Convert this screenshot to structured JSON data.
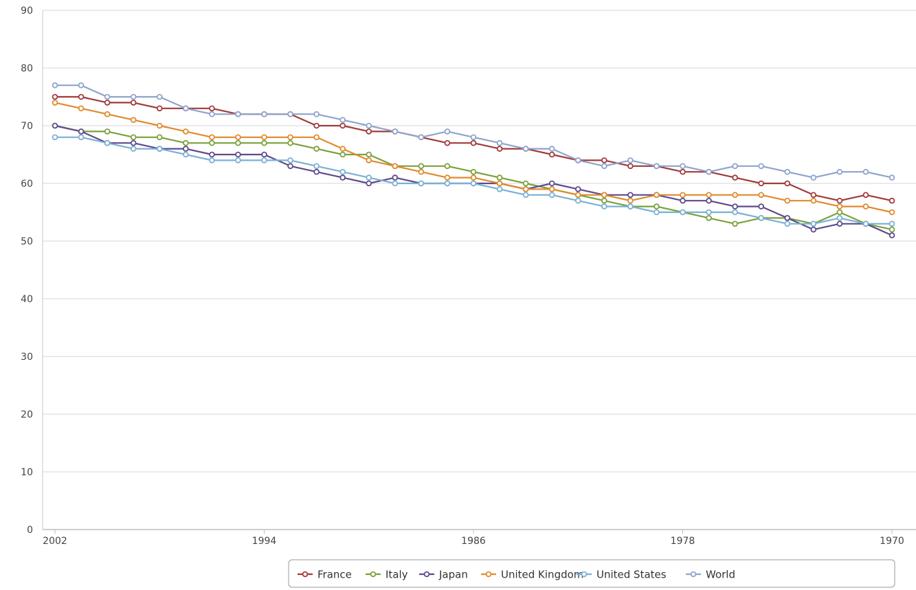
{
  "chart_data": {
    "type": "line",
    "title": "",
    "xlabel": "",
    "ylabel": "",
    "ylim": [
      0,
      90
    ],
    "xlim": [
      2002,
      1970
    ],
    "x_reversed": true,
    "grid": true,
    "legend_position": "bottom-right",
    "y_ticks": [
      "0",
      "10",
      "20",
      "30",
      "40",
      "50",
      "60",
      "70",
      "80",
      "90"
    ],
    "x_ticks": [
      "2002",
      "1994",
      "1986",
      "1978",
      "1970"
    ],
    "x": [
      2002,
      2001,
      2000,
      1999,
      1998,
      1997,
      1996,
      1995,
      1994,
      1993,
      1992,
      1991,
      1990,
      1989,
      1988,
      1987,
      1986,
      1985,
      1984,
      1983,
      1982,
      1981,
      1980,
      1979,
      1978,
      1977,
      1976,
      1975,
      1974,
      1973,
      1972,
      1971,
      1970
    ],
    "series": [
      {
        "name": "France",
        "color": "#a03a3a",
        "values": [
          75,
          75,
          74,
          74,
          73,
          73,
          73,
          72,
          72,
          72,
          70,
          70,
          69,
          69,
          68,
          67,
          67,
          66,
          66,
          65,
          64,
          64,
          63,
          63,
          62,
          62,
          61,
          60,
          60,
          58,
          57,
          58,
          57
        ]
      },
      {
        "name": "Italy",
        "color": "#7aa13c",
        "values": [
          70,
          69,
          69,
          68,
          68,
          67,
          67,
          67,
          67,
          67,
          66,
          65,
          65,
          63,
          63,
          63,
          62,
          61,
          60,
          59,
          58,
          57,
          56,
          56,
          55,
          54,
          53,
          54,
          54,
          53,
          55,
          53,
          52
        ]
      },
      {
        "name": "Japan",
        "color": "#5e4a8c",
        "values": [
          70,
          69,
          67,
          67,
          66,
          66,
          65,
          65,
          65,
          63,
          62,
          61,
          60,
          61,
          60,
          60,
          60,
          60,
          59,
          60,
          59,
          58,
          58,
          58,
          57,
          57,
          56,
          56,
          54,
          52,
          53,
          53,
          51
        ]
      },
      {
        "name": "United Kingdom",
        "color": "#e08a2c",
        "values": [
          74,
          73,
          72,
          71,
          70,
          69,
          68,
          68,
          68,
          68,
          68,
          66,
          64,
          63,
          62,
          61,
          61,
          60,
          59,
          59,
          58,
          58,
          57,
          58,
          58,
          58,
          58,
          58,
          57,
          57,
          56,
          56,
          55
        ]
      },
      {
        "name": "United States",
        "color": "#7ab0d4",
        "values": [
          68,
          68,
          67,
          66,
          66,
          65,
          64,
          64,
          64,
          64,
          63,
          62,
          61,
          60,
          60,
          60,
          60,
          59,
          58,
          58,
          57,
          56,
          56,
          55,
          55,
          55,
          55,
          54,
          53,
          53,
          54,
          53,
          53
        ]
      },
      {
        "name": "World",
        "color": "#8fa3cc",
        "values": [
          77,
          77,
          75,
          75,
          75,
          73,
          72,
          72,
          72,
          72,
          72,
          71,
          70,
          69,
          68,
          69,
          68,
          67,
          66,
          66,
          64,
          63,
          64,
          63,
          63,
          62,
          63,
          63,
          62,
          61,
          62,
          62,
          61
        ]
      }
    ]
  }
}
